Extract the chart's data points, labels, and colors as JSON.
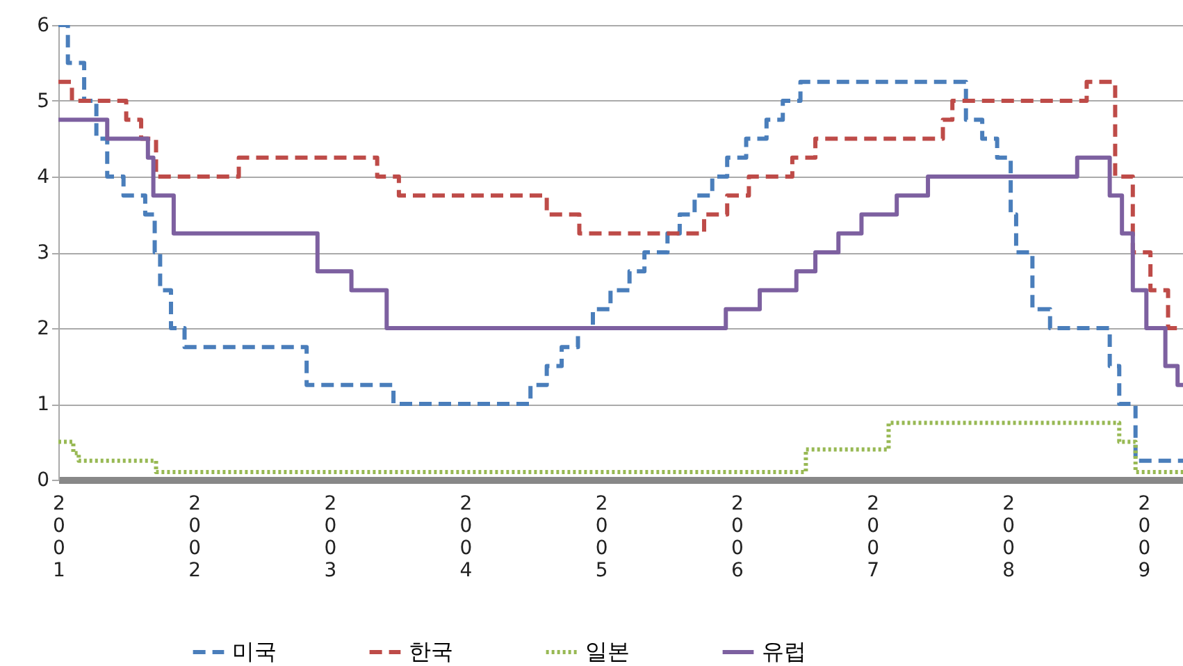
{
  "chart_data": {
    "type": "step",
    "xlim": [
      2001,
      2009.29
    ],
    "xticks": [
      2001,
      2002,
      2003,
      2004,
      2005,
      2006,
      2007,
      2008,
      2009
    ],
    "ylim": [
      0,
      6
    ],
    "yticks": [
      0,
      1,
      2,
      3,
      4,
      5,
      6
    ],
    "grid": "y",
    "legend": "bottom",
    "series": [
      {
        "name": "미국",
        "color": "#4a7ebb",
        "line_style": "dashed",
        "x": [
          2001,
          2001.07,
          2001.19,
          2001.28,
          2001.36,
          2001.48,
          2001.64,
          2001.71,
          2001.75,
          2001.83,
          2001.93,
          2002.83,
          2003.47,
          2004.48,
          2004.6,
          2004.71,
          2004.83,
          2004.94,
          2005.07,
          2005.21,
          2005.32,
          2005.49,
          2005.58,
          2005.69,
          2005.82,
          2005.93,
          2006.07,
          2006.22,
          2006.34,
          2006.47,
          2007.69,
          2007.81,
          2007.92,
          2008.02,
          2008.06,
          2008.18,
          2008.31,
          2008.75,
          2008.82,
          2008.94,
          2009.29
        ],
        "values": [
          6,
          5.5,
          5,
          4.5,
          4,
          3.75,
          3.5,
          3,
          2.5,
          2,
          1.75,
          1.25,
          1,
          1.25,
          1.5,
          1.75,
          2,
          2.25,
          2.5,
          2.75,
          3,
          3.25,
          3.5,
          3.75,
          4,
          4.25,
          4.5,
          4.75,
          5,
          5.25,
          4.75,
          4.5,
          4.25,
          3.5,
          3,
          2.25,
          2,
          1.5,
          1,
          0.25,
          0.25
        ]
      },
      {
        "name": "한국",
        "color": "#be4b48",
        "line_style": "dashed",
        "x": [
          2001,
          2001.1,
          2001.5,
          2001.61,
          2001.72,
          2002.33,
          2003.35,
          2003.51,
          2004.6,
          2004.84,
          2005.76,
          2005.93,
          2006.09,
          2006.41,
          2006.58,
          2007.52,
          2007.59,
          2008.58,
          2008.79,
          2008.92,
          2009.05,
          2009.18,
          2009.29
        ],
        "values": [
          5.25,
          5,
          4.75,
          4.5,
          4,
          4.25,
          4,
          3.75,
          3.5,
          3.25,
          3.5,
          3.75,
          4,
          4.25,
          4.5,
          4.75,
          5,
          5.25,
          4,
          3,
          2.5,
          2,
          2
        ]
      },
      {
        "name": "일본",
        "color": "#98b954",
        "line_style": "dotted",
        "x": [
          2001,
          2001.11,
          2001.15,
          2001.72,
          2006.51,
          2007.12,
          2008.82,
          2008.94,
          2009.29
        ],
        "values": [
          0.5,
          0.35,
          0.25,
          0.1,
          0.4,
          0.75,
          0.5,
          0.1,
          0.1
        ]
      },
      {
        "name": "유럽",
        "color": "#7d60a0",
        "line_style": "solid",
        "x": [
          2001,
          2001.36,
          2001.66,
          2001.7,
          2001.85,
          2002.91,
          2003.16,
          2003.42,
          2005.92,
          2006.17,
          2006.44,
          2006.58,
          2006.75,
          2006.92,
          2007.18,
          2007.41,
          2008.51,
          2008.75,
          2008.84,
          2008.92,
          2009.02,
          2009.16,
          2009.25,
          2009.29
        ],
        "values": [
          4.75,
          4.5,
          4.25,
          3.75,
          3.25,
          2.75,
          2.5,
          2,
          2.25,
          2.5,
          2.75,
          3,
          3.25,
          3.5,
          3.75,
          4,
          4.25,
          3.75,
          3.25,
          2.5,
          2,
          1.5,
          1.25,
          1.25
        ]
      }
    ]
  }
}
